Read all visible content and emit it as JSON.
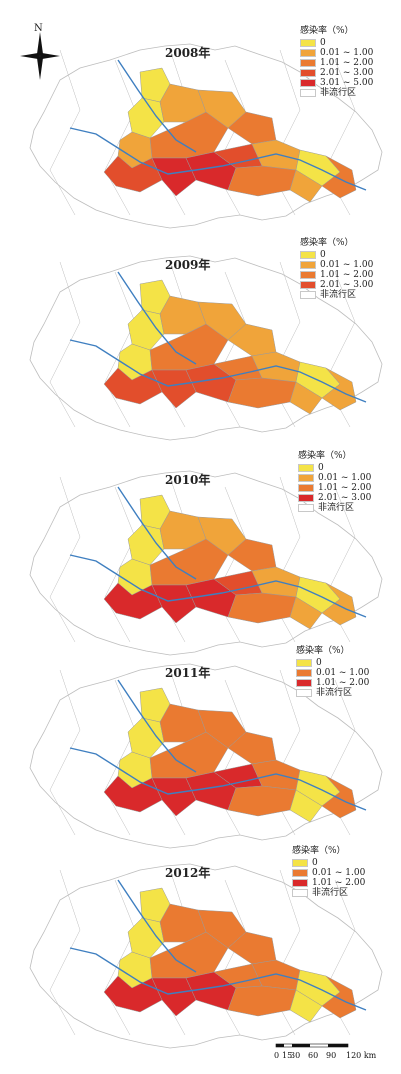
{
  "north_label": "N",
  "colors": {
    "c0": "#f4e347",
    "c1": "#f0a43a",
    "c2": "#ea7a31",
    "c3": "#e24e2c",
    "c4": "#d9292b",
    "none": "#ffffff",
    "border": "#bdbdbd",
    "river": "#3f7fc0"
  },
  "panels": [
    {
      "year": "2008年",
      "legend_title": "感染率（%）",
      "legend": [
        {
          "label": "0",
          "color": "#f4e347"
        },
        {
          "label": "0.01 ~ 1.00",
          "color": "#f0a43a"
        },
        {
          "label": "1.01 ~ 2.00",
          "color": "#ea7a31"
        },
        {
          "label": "2.01 ~ 3.00",
          "color": "#e24e2c"
        },
        {
          "label": "3.01 ~ 5.00",
          "color": "#d9292b"
        },
        {
          "label": "非流行区",
          "color": "#ffffff"
        }
      ]
    },
    {
      "year": "2009年",
      "legend_title": "感染率（%）",
      "legend": [
        {
          "label": "0",
          "color": "#f4e347"
        },
        {
          "label": "0.01 ~ 1.00",
          "color": "#f0a43a"
        },
        {
          "label": "1.01 ~ 2.00",
          "color": "#ea7a31"
        },
        {
          "label": "2.01 ~ 3.00",
          "color": "#e24e2c"
        },
        {
          "label": "非流行区",
          "color": "#ffffff"
        }
      ]
    },
    {
      "year": "2010年",
      "legend_title": "感染率（%）",
      "legend": [
        {
          "label": "0",
          "color": "#f4e347"
        },
        {
          "label": "0.01 ~ 1.00",
          "color": "#f0a43a"
        },
        {
          "label": "1.01 ~ 2.00",
          "color": "#ea7a31"
        },
        {
          "label": "2.01 ~ 3.00",
          "color": "#d9292b"
        },
        {
          "label": "非流行区",
          "color": "#ffffff"
        }
      ]
    },
    {
      "year": "2011年",
      "legend_title": "感染率（%）",
      "legend": [
        {
          "label": "0",
          "color": "#f4e347"
        },
        {
          "label": "0.01 ~ 1.00",
          "color": "#ea7a31"
        },
        {
          "label": "1.01 ~ 2.00",
          "color": "#d9292b"
        },
        {
          "label": "非流行区",
          "color": "#ffffff"
        }
      ]
    },
    {
      "year": "2012年",
      "legend_title": "感染率（%）",
      "legend": [
        {
          "label": "0",
          "color": "#f4e347"
        },
        {
          "label": "0.01 ~ 1.00",
          "color": "#ea7a31"
        },
        {
          "label": "1.01 ~ 2.00",
          "color": "#d9292b"
        },
        {
          "label": "非流行区",
          "color": "#ffffff"
        }
      ]
    }
  ],
  "scale": {
    "ticks": [
      "0",
      "15",
      "30",
      "60",
      "90",
      "120 km"
    ]
  }
}
